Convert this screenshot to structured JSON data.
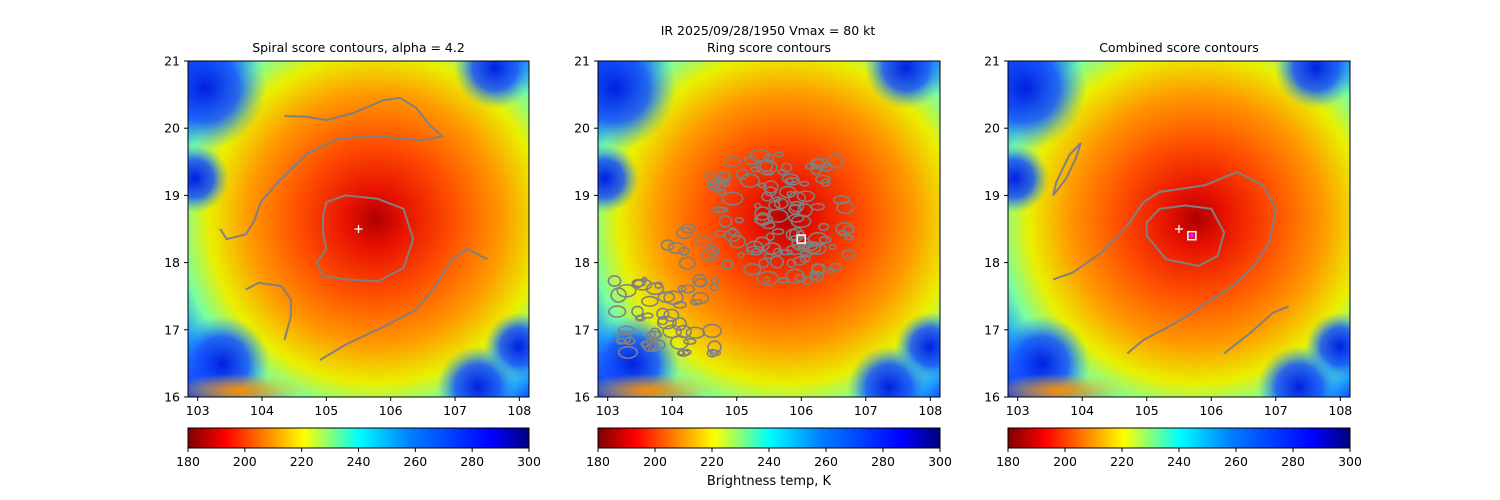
{
  "figure": {
    "suptitle_line1": "IR  2025/09/28/1950    Vmax = 80 kt",
    "colorbar_label": "Brightness temp, K"
  },
  "colors": {
    "contour": "#808080",
    "marker_white": "#ffffff",
    "marker_magenta": "#ff00ff"
  },
  "chart_data": [
    {
      "type": "heatmap",
      "title": "Spiral score contours, alpha =  4.2",
      "x_ticks": [
        103,
        104,
        105,
        106,
        107,
        108
      ],
      "y_ticks": [
        16,
        17,
        18,
        19,
        20,
        21
      ],
      "xlim": [
        102.85,
        108.15
      ],
      "ylim": [
        16,
        21
      ],
      "colorbar": {
        "ticks": [
          180,
          200,
          220,
          240,
          260,
          280,
          300
        ],
        "range": [
          180,
          300
        ],
        "colormap": "jet_r"
      },
      "center_markers": [
        {
          "kind": "plus",
          "lon": 105.5,
          "lat": 18.5,
          "color": "white"
        }
      ],
      "contours": [
        [
          [
            104.35,
            20.18
          ],
          [
            104.7,
            20.17
          ],
          [
            105.0,
            20.12
          ],
          [
            105.4,
            20.22
          ],
          [
            105.9,
            20.42
          ],
          [
            106.15,
            20.45
          ],
          [
            106.4,
            20.3
          ],
          [
            106.6,
            20.05
          ],
          [
            106.8,
            19.88
          ],
          [
            106.5,
            19.82
          ],
          [
            105.8,
            19.88
          ],
          [
            105.2,
            19.85
          ],
          [
            104.7,
            19.62
          ],
          [
            104.25,
            19.2
          ],
          [
            103.98,
            18.9
          ],
          [
            103.88,
            18.62
          ],
          [
            103.75,
            18.42
          ],
          [
            103.45,
            18.35
          ],
          [
            103.35,
            18.5
          ]
        ],
        [
          [
            105.0,
            18.9
          ],
          [
            105.3,
            19.0
          ],
          [
            105.8,
            18.95
          ],
          [
            106.2,
            18.8
          ],
          [
            106.35,
            18.35
          ],
          [
            106.2,
            17.92
          ],
          [
            105.8,
            17.72
          ],
          [
            105.3,
            17.75
          ],
          [
            104.95,
            17.8
          ],
          [
            104.85,
            18.0
          ],
          [
            105.0,
            18.2
          ],
          [
            104.95,
            18.45
          ],
          [
            104.95,
            18.7
          ],
          [
            105.0,
            18.9
          ]
        ],
        [
          [
            103.75,
            17.6
          ],
          [
            103.95,
            17.7
          ],
          [
            104.3,
            17.65
          ],
          [
            104.45,
            17.45
          ],
          [
            104.45,
            17.2
          ],
          [
            104.35,
            16.85
          ]
        ],
        [
          [
            104.9,
            16.55
          ],
          [
            105.3,
            16.78
          ],
          [
            105.9,
            17.05
          ],
          [
            106.4,
            17.3
          ],
          [
            106.7,
            17.65
          ],
          [
            106.95,
            18.05
          ],
          [
            107.2,
            18.2
          ],
          [
            107.5,
            18.05
          ]
        ]
      ]
    },
    {
      "type": "heatmap",
      "title": "Ring score contours",
      "x_ticks": [
        103,
        104,
        105,
        106,
        107,
        108
      ],
      "y_ticks": [
        16,
        17,
        18,
        19,
        20,
        21
      ],
      "xlim": [
        102.85,
        108.15
      ],
      "ylim": [
        16,
        21
      ],
      "colorbar": {
        "ticks": [
          180,
          200,
          220,
          240,
          260,
          280,
          300
        ],
        "range": [
          180,
          300
        ],
        "colormap": "jet_r"
      },
      "center_markers": [
        {
          "kind": "square",
          "lon": 106.0,
          "lat": 18.35,
          "color": "white"
        }
      ],
      "contours": []
    },
    {
      "type": "heatmap",
      "title": "Combined score contours",
      "x_ticks": [
        103,
        104,
        105,
        106,
        107,
        108
      ],
      "y_ticks": [
        16,
        17,
        18,
        19,
        20,
        21
      ],
      "xlim": [
        102.85,
        108.15
      ],
      "ylim": [
        16,
        21
      ],
      "colorbar": {
        "ticks": [
          180,
          200,
          220,
          240,
          260,
          280,
          300
        ],
        "range": [
          180,
          300
        ],
        "colormap": "jet_r"
      },
      "center_markers": [
        {
          "kind": "plus",
          "lon": 105.5,
          "lat": 18.5,
          "color": "white"
        },
        {
          "kind": "square",
          "lon": 105.7,
          "lat": 18.4,
          "color": "white"
        },
        {
          "kind": "dot",
          "lon": 105.7,
          "lat": 18.4,
          "color": "magenta"
        }
      ],
      "contours": [
        [
          [
            103.6,
            19.2
          ],
          [
            103.8,
            19.6
          ],
          [
            103.98,
            19.78
          ],
          [
            103.9,
            19.55
          ],
          [
            103.75,
            19.25
          ],
          [
            103.55,
            19.0
          ],
          [
            103.6,
            19.2
          ]
        ],
        [
          [
            103.55,
            17.75
          ],
          [
            103.85,
            17.85
          ],
          [
            104.3,
            18.15
          ],
          [
            104.7,
            18.55
          ],
          [
            104.95,
            18.9
          ],
          [
            105.2,
            19.05
          ],
          [
            105.9,
            19.15
          ],
          [
            106.4,
            19.35
          ],
          [
            106.8,
            19.15
          ],
          [
            107.0,
            18.8
          ],
          [
            106.9,
            18.3
          ],
          [
            106.7,
            18.0
          ],
          [
            106.4,
            17.7
          ],
          [
            106.0,
            17.45
          ],
          [
            105.7,
            17.25
          ],
          [
            105.35,
            17.05
          ],
          [
            104.95,
            16.85
          ],
          [
            104.7,
            16.65
          ]
        ],
        [
          [
            105.0,
            18.4
          ],
          [
            105.3,
            18.05
          ],
          [
            105.8,
            17.95
          ],
          [
            106.1,
            18.1
          ],
          [
            106.2,
            18.45
          ],
          [
            106.0,
            18.8
          ],
          [
            105.6,
            18.85
          ],
          [
            105.2,
            18.8
          ],
          [
            105.0,
            18.6
          ],
          [
            105.0,
            18.4
          ]
        ],
        [
          [
            106.2,
            16.65
          ],
          [
            106.6,
            16.95
          ],
          [
            106.95,
            17.25
          ],
          [
            107.2,
            17.35
          ]
        ]
      ]
    }
  ]
}
